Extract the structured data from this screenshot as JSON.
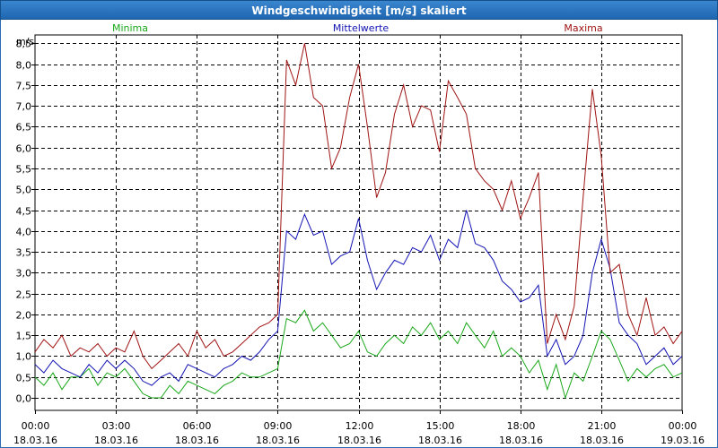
{
  "window": {
    "title": "Windgeschwindigkeit [m/s] skaliert"
  },
  "chart_data": {
    "type": "line",
    "title": "Windgeschwindigkeit [m/s] skaliert",
    "ylabel": "m/s",
    "ylim": [
      -0.3,
      8.7
    ],
    "xlim_hours": [
      0,
      24
    ],
    "yticks": [
      "0,0",
      "0,5",
      "1,0",
      "1,5",
      "2,0",
      "2,5",
      "3,0",
      "3,5",
      "4,0",
      "4,5",
      "5,0",
      "5,5",
      "6,0",
      "6,5",
      "7,0",
      "7,5",
      "8,0",
      "8,5"
    ],
    "ytick_values": [
      0,
      0.5,
      1,
      1.5,
      2,
      2.5,
      3,
      3.5,
      4,
      4.5,
      5,
      5.5,
      6,
      6.5,
      7,
      7.5,
      8,
      8.5
    ],
    "xticks": [
      {
        "time": "00:00",
        "date": "18.03.16"
      },
      {
        "time": "03:00",
        "date": "18.03.16"
      },
      {
        "time": "06:00",
        "date": "18.03.16"
      },
      {
        "time": "09:00",
        "date": "18.03.16"
      },
      {
        "time": "12:00",
        "date": "18.03.16"
      },
      {
        "time": "15:00",
        "date": "18.03.16"
      },
      {
        "time": "18:00",
        "date": "18.03.16"
      },
      {
        "time": "21:00",
        "date": "18.03.16"
      },
      {
        "time": "00:00",
        "date": "19.03.16"
      }
    ],
    "xtick_hours": [
      0,
      3,
      6,
      9,
      12,
      15,
      18,
      21,
      24
    ],
    "series": [
      {
        "name": "Minima",
        "color": "#1aa81a",
        "x": [
          0,
          0.33,
          0.67,
          1,
          1.33,
          1.67,
          2,
          2.33,
          2.67,
          3,
          3.33,
          3.67,
          4,
          4.33,
          4.67,
          5,
          5.33,
          5.67,
          6,
          6.33,
          6.67,
          7,
          7.33,
          7.67,
          8,
          8.33,
          8.67,
          9,
          9.33,
          9.67,
          10,
          10.33,
          10.67,
          11,
          11.33,
          11.67,
          12,
          12.33,
          12.67,
          13,
          13.33,
          13.67,
          14,
          14.33,
          14.67,
          15,
          15.33,
          15.67,
          16,
          16.33,
          16.67,
          17,
          17.33,
          17.67,
          18,
          18.33,
          18.67,
          19,
          19.33,
          19.67,
          20,
          20.33,
          20.67,
          21,
          21.33,
          21.67,
          22,
          22.33,
          22.67,
          23,
          23.33,
          23.67,
          24
        ],
        "values": [
          0.5,
          0.3,
          0.6,
          0.2,
          0.5,
          0.5,
          0.7,
          0.3,
          0.6,
          0.5,
          0.7,
          0.4,
          0.1,
          0.0,
          0.0,
          0.3,
          0.1,
          0.4,
          0.3,
          0.2,
          0.1,
          0.3,
          0.4,
          0.6,
          0.5,
          0.5,
          0.6,
          0.7,
          1.9,
          1.8,
          2.1,
          1.6,
          1.8,
          1.5,
          1.2,
          1.3,
          1.6,
          1.1,
          1.0,
          1.3,
          1.5,
          1.3,
          1.7,
          1.5,
          1.8,
          1.4,
          1.6,
          1.3,
          1.8,
          1.5,
          1.2,
          1.6,
          1.0,
          1.2,
          1.0,
          0.6,
          0.9,
          0.2,
          0.8,
          0.0,
          0.6,
          0.4,
          1.0,
          1.6,
          1.4,
          0.9,
          0.4,
          0.7,
          0.5,
          0.7,
          0.8,
          0.5,
          0.6
        ]
      },
      {
        "name": "Mittelwerte",
        "color": "#1414b4",
        "x": [
          0,
          0.33,
          0.67,
          1,
          1.33,
          1.67,
          2,
          2.33,
          2.67,
          3,
          3.33,
          3.67,
          4,
          4.33,
          4.67,
          5,
          5.33,
          5.67,
          6,
          6.33,
          6.67,
          7,
          7.33,
          7.67,
          8,
          8.33,
          8.67,
          9,
          9.33,
          9.67,
          10,
          10.33,
          10.67,
          11,
          11.33,
          11.67,
          12,
          12.33,
          12.67,
          13,
          13.33,
          13.67,
          14,
          14.33,
          14.67,
          15,
          15.33,
          15.67,
          16,
          16.33,
          16.67,
          17,
          17.33,
          17.67,
          18,
          18.33,
          18.67,
          19,
          19.33,
          19.67,
          20,
          20.33,
          20.67,
          21,
          21.33,
          21.67,
          22,
          22.33,
          22.67,
          23,
          23.33,
          23.67,
          24
        ],
        "values": [
          0.8,
          0.6,
          0.9,
          0.7,
          0.6,
          0.5,
          0.8,
          0.6,
          0.9,
          0.7,
          0.9,
          0.7,
          0.4,
          0.3,
          0.5,
          0.6,
          0.4,
          0.8,
          0.7,
          0.6,
          0.5,
          0.7,
          0.8,
          1.0,
          0.9,
          1.1,
          1.4,
          1.6,
          4.0,
          3.8,
          4.4,
          3.9,
          4.0,
          3.2,
          3.4,
          3.5,
          4.3,
          3.3,
          2.6,
          3.0,
          3.3,
          3.2,
          3.6,
          3.5,
          3.9,
          3.3,
          3.8,
          3.6,
          4.5,
          3.7,
          3.6,
          3.3,
          2.8,
          2.6,
          2.3,
          2.4,
          2.7,
          1.0,
          1.4,
          0.8,
          1.0,
          1.5,
          3.0,
          3.8,
          3.1,
          1.8,
          1.5,
          1.3,
          0.8,
          1.0,
          1.2,
          0.8,
          1.0
        ]
      },
      {
        "name": "Maxima",
        "color": "#a01414",
        "x": [
          0,
          0.33,
          0.67,
          1,
          1.33,
          1.67,
          2,
          2.33,
          2.67,
          3,
          3.33,
          3.67,
          4,
          4.33,
          4.67,
          5,
          5.33,
          5.67,
          6,
          6.33,
          6.67,
          7,
          7.33,
          7.67,
          8,
          8.33,
          8.67,
          9,
          9.33,
          9.67,
          10,
          10.33,
          10.67,
          11,
          11.33,
          11.67,
          12,
          12.33,
          12.67,
          13,
          13.33,
          13.67,
          14,
          14.33,
          14.67,
          15,
          15.33,
          15.67,
          16,
          16.33,
          16.67,
          17,
          17.33,
          17.67,
          18,
          18.33,
          18.67,
          19,
          19.33,
          19.67,
          20,
          20.33,
          20.67,
          21,
          21.33,
          21.67,
          22,
          22.33,
          22.67,
          23,
          23.33,
          23.67,
          24
        ],
        "values": [
          1.1,
          1.4,
          1.2,
          1.5,
          1.0,
          1.2,
          1.1,
          1.3,
          1.0,
          1.2,
          1.1,
          1.6,
          1.0,
          0.7,
          0.9,
          1.1,
          1.3,
          1.0,
          1.6,
          1.2,
          1.4,
          1.0,
          1.1,
          1.3,
          1.5,
          1.7,
          1.8,
          2.0,
          8.1,
          7.5,
          8.5,
          7.2,
          7.0,
          5.5,
          6.0,
          7.2,
          8.0,
          6.5,
          4.8,
          5.4,
          6.8,
          7.5,
          6.5,
          7.0,
          6.9,
          5.9,
          7.6,
          7.2,
          6.8,
          5.5,
          5.2,
          5.0,
          4.5,
          5.2,
          4.3,
          4.8,
          5.4,
          1.3,
          2.0,
          1.4,
          2.2,
          4.8,
          7.4,
          5.8,
          3.0,
          3.2,
          2.0,
          1.5,
          2.4,
          1.5,
          1.7,
          1.3,
          1.6
        ]
      }
    ]
  }
}
